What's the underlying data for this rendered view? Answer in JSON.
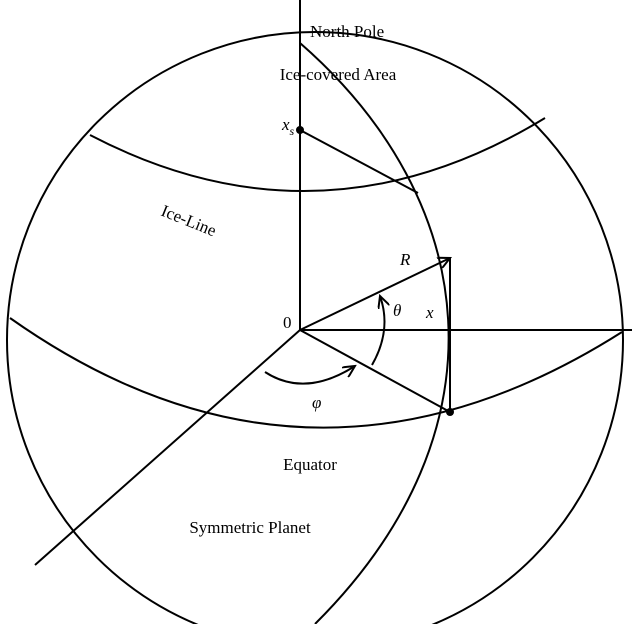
{
  "labels": {
    "north_pole": "North Pole",
    "ice_area": "Ice-covered Area",
    "xs": {
      "base": "x",
      "sub": "s"
    },
    "ice_line": "Ice-Line",
    "radius": "R",
    "theta": "θ",
    "x": "x",
    "origin": "0",
    "phi": "φ",
    "equator": "Equator",
    "planet": "Symmetric Planet"
  }
}
